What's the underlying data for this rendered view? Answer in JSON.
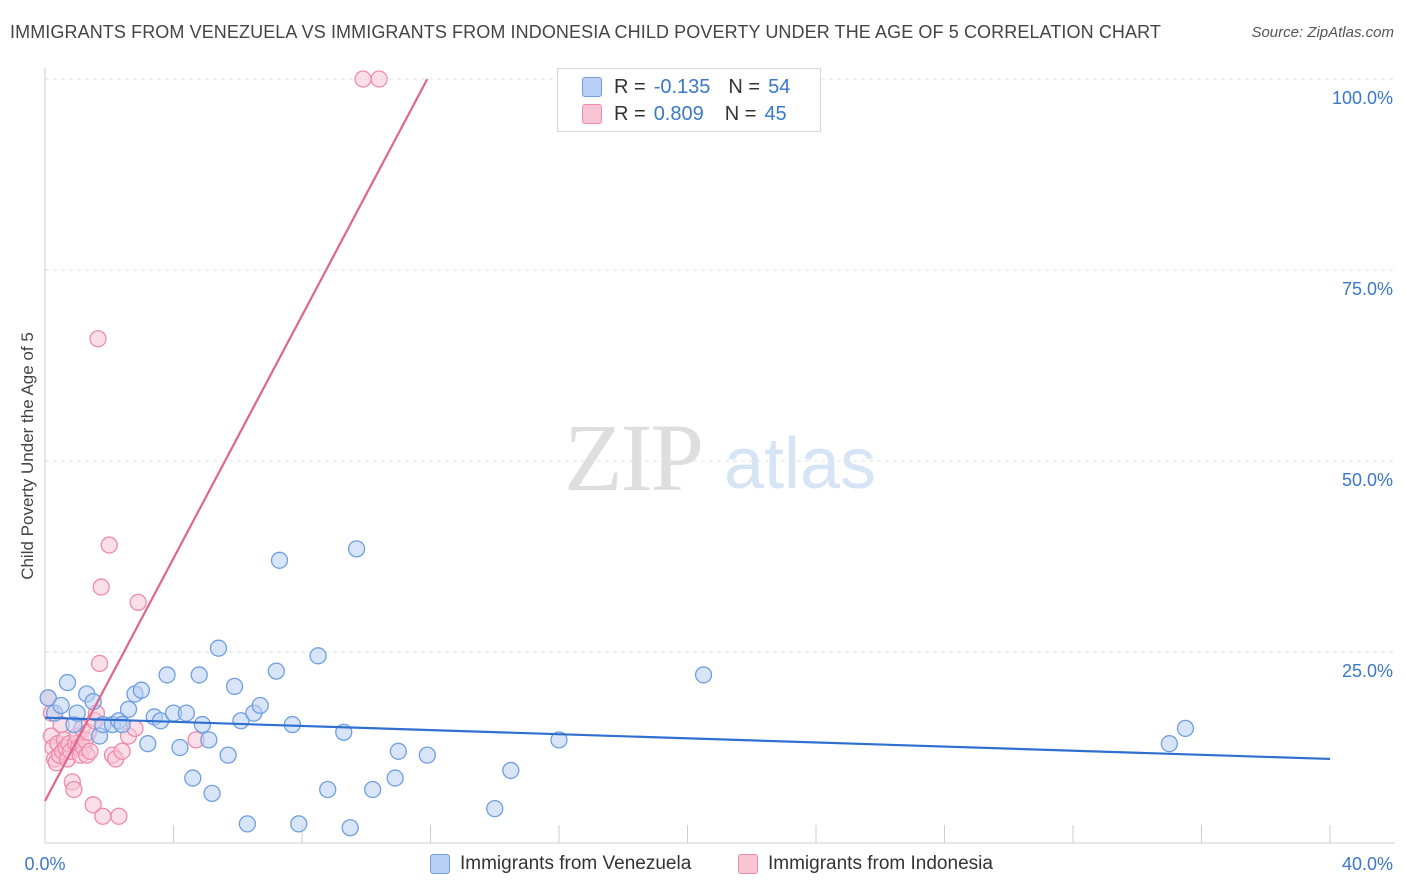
{
  "header": {
    "title": "IMMIGRANTS FROM VENEZUELA VS IMMIGRANTS FROM INDONESIA CHILD POVERTY UNDER THE AGE OF 5 CORRELATION CHART",
    "source": "Source: ZipAtlas.com"
  },
  "watermark": {
    "zip": "ZIP",
    "atlas": "atlas"
  },
  "legend": {
    "r_label": "R =",
    "n_label": "N =",
    "series": [
      {
        "r": "-0.135",
        "n": "54"
      },
      {
        "r": "0.809",
        "n": "45"
      }
    ]
  },
  "bottom_legend": {
    "venezuela": "Immigrants from Venezuela",
    "indonesia": "Immigrants from Indonesia"
  },
  "colors": {
    "venezuela_fill": "#b8d0f3",
    "venezuela_stroke": "#6f9fe0",
    "venezuela_line": "#2f6fd0",
    "indonesia_fill": "#f8c5d5",
    "indonesia_stroke": "#ee8aaa",
    "indonesia_line": "#e0668f",
    "grid": "#e2e2e2",
    "axis_text": "#3a78c9"
  },
  "chart_data": {
    "type": "scatter",
    "title": "IMMIGRANTS FROM VENEZUELA VS IMMIGRANTS FROM INDONESIA CHILD POVERTY UNDER THE AGE OF 5 CORRELATION CHART",
    "xlabel": "",
    "ylabel": "Child Poverty Under the Age of 5",
    "xlim": [
      0,
      40
    ],
    "ylim": [
      0,
      100
    ],
    "x_tick_labels": [
      "0.0%",
      "40.0%"
    ],
    "y_ticks": [
      25,
      50,
      75,
      100
    ],
    "y_tick_labels": [
      "25.0%",
      "50.0%",
      "75.0%",
      "100.0%"
    ],
    "grid": true,
    "legend_position": "top-center",
    "series": [
      {
        "name": "Immigrants from Venezuela",
        "r": -0.135,
        "n": 54,
        "trend": {
          "x": [
            0,
            40
          ],
          "y": [
            16.4,
            11.0
          ]
        },
        "points": [
          [
            0.1,
            19
          ],
          [
            0.3,
            17
          ],
          [
            0.5,
            18
          ],
          [
            0.7,
            21
          ],
          [
            0.9,
            15.5
          ],
          [
            1.0,
            17
          ],
          [
            1.3,
            19.5
          ],
          [
            1.5,
            18.5
          ],
          [
            1.7,
            14
          ],
          [
            1.8,
            15.5
          ],
          [
            2.1,
            15.5
          ],
          [
            2.3,
            16
          ],
          [
            2.4,
            15.5
          ],
          [
            2.6,
            17.5
          ],
          [
            2.8,
            19.5
          ],
          [
            3.0,
            20
          ],
          [
            3.2,
            13
          ],
          [
            3.4,
            16.5
          ],
          [
            3.6,
            16
          ],
          [
            3.8,
            22
          ],
          [
            4.0,
            17
          ],
          [
            4.2,
            12.5
          ],
          [
            4.4,
            17
          ],
          [
            4.6,
            8.5
          ],
          [
            4.8,
            22
          ],
          [
            4.9,
            15.5
          ],
          [
            5.1,
            13.5
          ],
          [
            5.2,
            6.5
          ],
          [
            5.4,
            25.5
          ],
          [
            5.7,
            11.5
          ],
          [
            5.9,
            20.5
          ],
          [
            6.1,
            16
          ],
          [
            6.3,
            2.5
          ],
          [
            6.5,
            17
          ],
          [
            6.7,
            18
          ],
          [
            7.2,
            22.5
          ],
          [
            7.3,
            37
          ],
          [
            7.7,
            15.5
          ],
          [
            7.9,
            2.5
          ],
          [
            8.5,
            24.5
          ],
          [
            8.8,
            7
          ],
          [
            9.3,
            14.5
          ],
          [
            9.5,
            2
          ],
          [
            9.7,
            38.5
          ],
          [
            10.2,
            7
          ],
          [
            10.9,
            8.5
          ],
          [
            11.0,
            12
          ],
          [
            11.9,
            11.5
          ],
          [
            14.0,
            4.5
          ],
          [
            14.5,
            9.5
          ],
          [
            16.0,
            13.5
          ],
          [
            20.5,
            22
          ],
          [
            35.0,
            13
          ],
          [
            35.5,
            15
          ]
        ]
      },
      {
        "name": "Immigrants from Indonesia",
        "r": 0.809,
        "n": 45,
        "trend": {
          "x": [
            0,
            11.9
          ],
          "y": [
            5.5,
            100
          ]
        },
        "points": [
          [
            0.1,
            19
          ],
          [
            0.2,
            17
          ],
          [
            0.2,
            14
          ],
          [
            0.25,
            12.5
          ],
          [
            0.3,
            11
          ],
          [
            0.35,
            10.5
          ],
          [
            0.4,
            13
          ],
          [
            0.45,
            11.5
          ],
          [
            0.5,
            15.5
          ],
          [
            0.55,
            12
          ],
          [
            0.6,
            13.5
          ],
          [
            0.65,
            12.5
          ],
          [
            0.7,
            11
          ],
          [
            0.75,
            13
          ],
          [
            0.8,
            12
          ],
          [
            0.85,
            8
          ],
          [
            0.9,
            7
          ],
          [
            0.95,
            13
          ],
          [
            1.0,
            14
          ],
          [
            1.05,
            12.5
          ],
          [
            1.1,
            11.5
          ],
          [
            1.15,
            15
          ],
          [
            1.2,
            12.5
          ],
          [
            1.25,
            13.5
          ],
          [
            1.3,
            11.5
          ],
          [
            1.35,
            14.5
          ],
          [
            1.4,
            12
          ],
          [
            1.5,
            5
          ],
          [
            1.55,
            16
          ],
          [
            1.6,
            17
          ],
          [
            1.65,
            66
          ],
          [
            1.7,
            23.5
          ],
          [
            1.75,
            33.5
          ],
          [
            1.8,
            3.5
          ],
          [
            2.0,
            39
          ],
          [
            2.1,
            11.5
          ],
          [
            2.2,
            11
          ],
          [
            2.3,
            3.5
          ],
          [
            2.4,
            12
          ],
          [
            2.6,
            14
          ],
          [
            2.8,
            15
          ],
          [
            2.9,
            31.5
          ],
          [
            4.7,
            13.5
          ],
          [
            9.9,
            100
          ],
          [
            10.4,
            100
          ]
        ]
      }
    ]
  }
}
